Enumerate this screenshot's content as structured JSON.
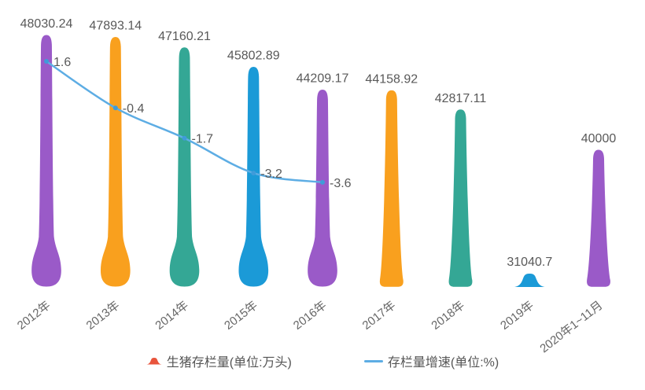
{
  "chart_data": {
    "type": "bar",
    "subtype": "pictorial-bar-with-line-overlay",
    "title": "",
    "categories": [
      "2012年",
      "2013年",
      "2014年",
      "2015年",
      "2016年",
      "2017年",
      "2018年",
      "2019年",
      "2020年1~11月"
    ],
    "series": [
      {
        "name": "生猪存栏量(单位:万头)",
        "type": "pictorialBar",
        "values": [
          48030.24,
          47893.14,
          47160.21,
          45802.89,
          44209.17,
          44158.92,
          42817.11,
          31040.7,
          40000
        ]
      },
      {
        "name": "存栏量增速(单位:%)",
        "type": "line",
        "values": [
          1.6,
          -0.4,
          -1.7,
          -3.2,
          -3.6,
          null,
          null,
          null,
          null
        ]
      }
    ],
    "bar_palette": [
      "#9a5ac8",
      "#f9a01e",
      "#34a795",
      "#1b9ad7"
    ],
    "line_color": "#5dade4",
    "line_point_color": "#3f9bd9",
    "value_label_color": "#595959",
    "axis_label_color": "#666666",
    "bar_ylim": [
      30374,
      48030.24
    ],
    "grid": false,
    "x_axis_line": false,
    "y_axis_visible": false,
    "legend_position": "bottom"
  },
  "legend": {
    "items": [
      {
        "label": "生猪存栏量(单位:万头)",
        "marker": "pictorial-peak-icon",
        "marker_color": "#e8543c"
      },
      {
        "label": "存栏量增速(单位:%)",
        "marker": "line-icon",
        "marker_color": "#5dade4"
      }
    ]
  }
}
